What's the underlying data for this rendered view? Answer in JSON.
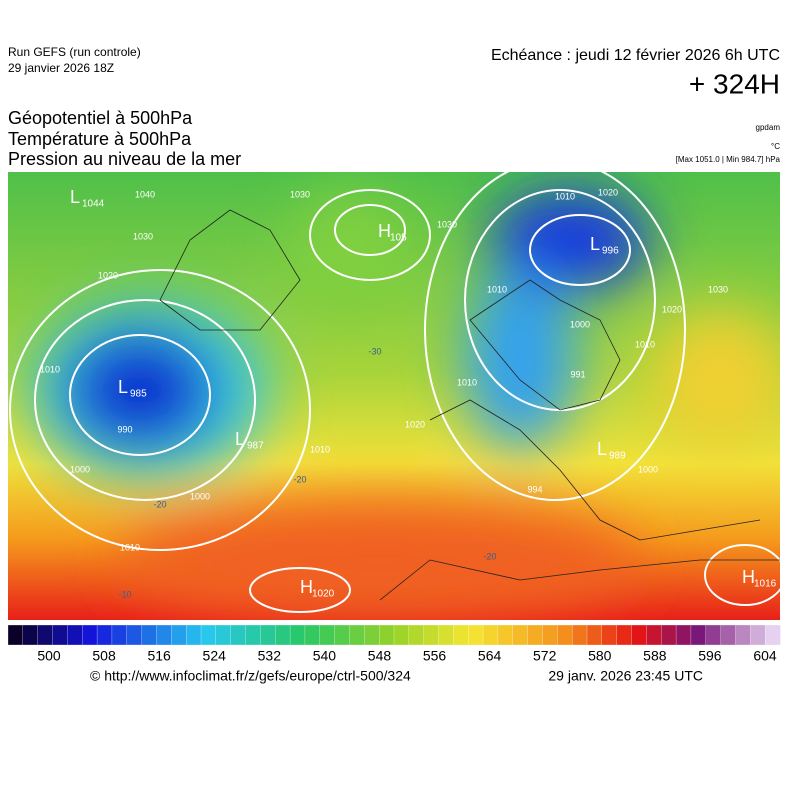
{
  "header": {
    "run": "Run GEFS (run controle)",
    "run_date": "29 janvier 2026 18Z",
    "valid": "Echéance : jeudi 12 février 2026 6h UTC",
    "lead": "+ 324H",
    "fields": [
      "Géopotentiel à 500hPa",
      "Température à 500hPa",
      "Pression au niveau de la mer"
    ],
    "units": [
      "gpdam",
      "°C"
    ],
    "extremes": "[Max 1051.0 | Min 984.7] hPa"
  },
  "map": {
    "centers": [
      {
        "kind": "L",
        "value": "1044"
      },
      {
        "kind": "H",
        "value": "105"
      },
      {
        "kind": "L",
        "value": "996"
      },
      {
        "kind": "L",
        "value": "985"
      },
      {
        "kind": "L",
        "value": "987"
      },
      {
        "kind": "L",
        "value": "989"
      },
      {
        "kind": "H",
        "value": "1020"
      },
      {
        "kind": "H",
        "value": "1016"
      }
    ],
    "contour_labels": [
      "1040",
      "1030",
      "1020",
      "1010",
      "1000",
      "990",
      "1000",
      "1010",
      "1020",
      "1010",
      "1030",
      "1010",
      "1020",
      "1010",
      "1000",
      "1020",
      "1030",
      "1010",
      "1000",
      "1010",
      "991",
      "994",
      "1030",
      "-30",
      "-20",
      "-20",
      "-20",
      "-10"
    ]
  },
  "colorbar": {
    "ticks": [
      500,
      508,
      516,
      524,
      532,
      540,
      548,
      556,
      564,
      572,
      580,
      588,
      596,
      604
    ]
  },
  "footer": {
    "source": "© http://www.infoclimat.fr/z/gefs/europe/ctrl-500/324",
    "generated": "29 janv. 2026 23:45 UTC"
  }
}
